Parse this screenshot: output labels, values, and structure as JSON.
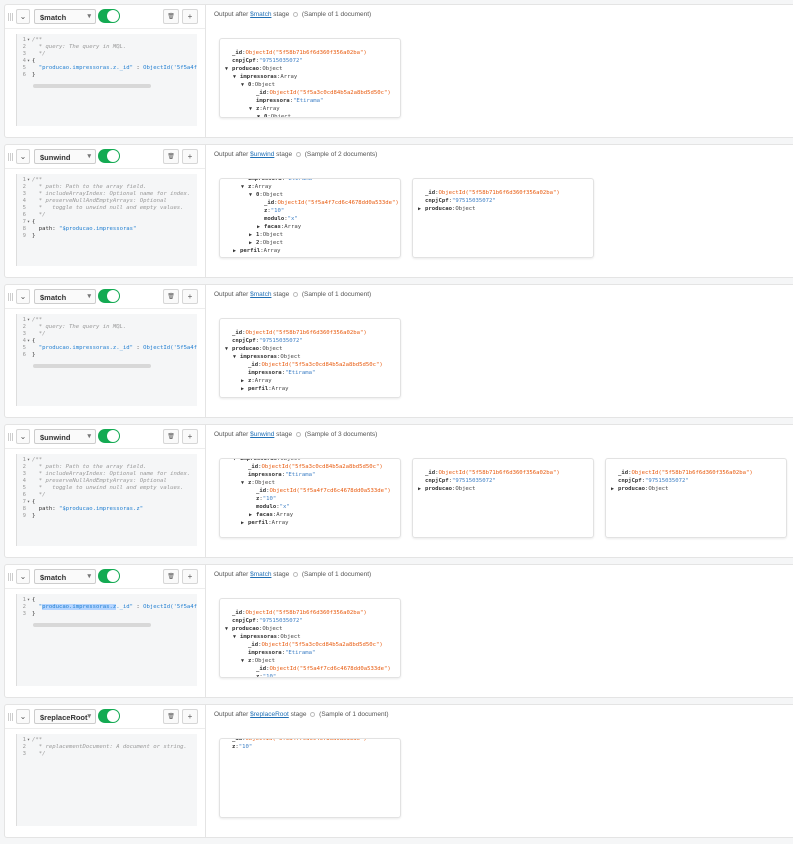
{
  "ui": {
    "output_prefix": "Output after",
    "stage_word": "stage",
    "collapse_icon": "chevron-down-icon",
    "delete_icon": "trash-icon",
    "add_label": "+",
    "select_caret": "▾",
    "delete_glyph": "🗑",
    "chevron_glyph": "⌄"
  },
  "stages": [
    {
      "operator": "$match",
      "enabled": true,
      "sample": "(Sample of 1 document)",
      "code": [
        [
          [
            "/**",
            "c-com"
          ]
        ],
        [
          [
            "  * query: The query in MQL.",
            "c-com"
          ]
        ],
        [
          [
            "  */",
            "c-com"
          ]
        ],
        [
          [
            "{",
            "c-pun"
          ]
        ],
        [
          [
            "  ",
            "c-pun"
          ],
          [
            "\"producao.impressoras.z._id\"",
            "c-str"
          ],
          [
            " : ",
            "c-pun"
          ],
          [
            "ObjectId('5f5a4f",
            "c-fn"
          ]
        ],
        [
          [
            "}",
            "c-pun"
          ]
        ]
      ],
      "folds": [
        1,
        4
      ],
      "scrollbar": true,
      "docs": [
        {
          "scrolled": false,
          "lines": [
            [
              0,
              "",
              "_id",
              "ObjectId(\"5f58b71b6f6d360f356a02ba\")",
              "id"
            ],
            [
              0,
              "",
              "cnpjCpf",
              "\"97515035072\"",
              "s"
            ],
            [
              0,
              "down",
              "producao",
              "Object",
              "t"
            ],
            [
              1,
              "down",
              "impressoras",
              "Array",
              "t"
            ],
            [
              2,
              "down",
              "0",
              "Object",
              "t"
            ],
            [
              3,
              "",
              "_id",
              "ObjectId(\"5f5a3c0cd84b5a2a8bd5d50c\")",
              "id"
            ],
            [
              3,
              "",
              "impressora",
              "\"Etirama\"",
              "s"
            ],
            [
              3,
              "down",
              "z",
              "Array",
              "t"
            ],
            [
              4,
              "down",
              "0",
              "Object",
              "t"
            ]
          ]
        }
      ]
    },
    {
      "operator": "$unwind",
      "enabled": true,
      "sample": "(Sample of 2 documents)",
      "code": [
        [
          [
            "/**",
            "c-com"
          ]
        ],
        [
          [
            "  * path: Path to the array field.",
            "c-com"
          ]
        ],
        [
          [
            "  * includeArrayIndex: Optional name for index.",
            "c-com"
          ]
        ],
        [
          [
            "  * preserveNullAndEmptyArrays: Optional",
            "c-com"
          ]
        ],
        [
          [
            "  *   toggle to unwind null and empty values.",
            "c-com"
          ]
        ],
        [
          [
            "  */",
            "c-com"
          ]
        ],
        [
          [
            "{",
            "c-pun"
          ]
        ],
        [
          [
            "  path: ",
            "c-pun"
          ],
          [
            "\"$producao.impressoras\"",
            "c-str"
          ]
        ],
        [
          [
            "}",
            "c-pun"
          ]
        ]
      ],
      "folds": [
        1,
        7
      ],
      "scrollbar": false,
      "docs": [
        {
          "scrolled": true,
          "lines": [
            [
              2,
              "",
              "impressora",
              "\"Etirama\"",
              "s"
            ],
            [
              2,
              "down",
              "z",
              "Array",
              "t"
            ],
            [
              3,
              "down",
              "0",
              "Object",
              "t"
            ],
            [
              4,
              "",
              "_id",
              "ObjectId(\"5f5a4f7cd6c4678dd0a533de\")",
              "id"
            ],
            [
              4,
              "",
              "z",
              "\"10\"",
              "s"
            ],
            [
              4,
              "",
              "modulo",
              "\"x\"",
              "s"
            ],
            [
              4,
              "right",
              "facas",
              "Array",
              "t"
            ],
            [
              3,
              "right",
              "1",
              "Object",
              "t"
            ],
            [
              3,
              "right",
              "2",
              "Object",
              "t"
            ],
            [
              1,
              "right",
              "perfil",
              "Array",
              "t"
            ]
          ]
        },
        {
          "scrolled": false,
          "lines": [
            [
              0,
              "",
              "_id",
              "ObjectId(\"5f58b71b6f6d360f356a02ba\")",
              "id"
            ],
            [
              0,
              "",
              "cnpjCpf",
              "\"97515035072\"",
              "s"
            ],
            [
              0,
              "right",
              "producao",
              "Object",
              "t"
            ]
          ]
        }
      ]
    },
    {
      "operator": "$match",
      "enabled": true,
      "sample": "(Sample of 1 document)",
      "code": [
        [
          [
            "/**",
            "c-com"
          ]
        ],
        [
          [
            "  * query: The query in MQL.",
            "c-com"
          ]
        ],
        [
          [
            "  */",
            "c-com"
          ]
        ],
        [
          [
            "{",
            "c-pun"
          ]
        ],
        [
          [
            "  ",
            "c-pun"
          ],
          [
            "\"producao.impressoras.z._id\"",
            "c-str"
          ],
          [
            " : ",
            "c-pun"
          ],
          [
            "ObjectId('5f5a4f",
            "c-fn"
          ]
        ],
        [
          [
            "}",
            "c-pun"
          ]
        ]
      ],
      "folds": [
        1,
        4
      ],
      "scrollbar": true,
      "docs": [
        {
          "scrolled": false,
          "lines": [
            [
              0,
              "",
              "_id",
              "ObjectId(\"5f58b71b6f6d360f356a02ba\")",
              "id"
            ],
            [
              0,
              "",
              "cnpjCpf",
              "\"97515035072\"",
              "s"
            ],
            [
              0,
              "down",
              "producao",
              "Object",
              "t"
            ],
            [
              1,
              "down",
              "impressoras",
              "Object",
              "t"
            ],
            [
              2,
              "",
              "_id",
              "ObjectId(\"5f5a3c0cd84b5a2a8bd5d50c\")",
              "id"
            ],
            [
              2,
              "",
              "impressora",
              "\"Etirama\"",
              "s"
            ],
            [
              2,
              "right",
              "z",
              "Array",
              "t"
            ],
            [
              2,
              "right",
              "perfil",
              "Array",
              "t"
            ]
          ]
        }
      ]
    },
    {
      "operator": "$unwind",
      "enabled": true,
      "sample": "(Sample of 3 documents)",
      "code": [
        [
          [
            "/**",
            "c-com"
          ]
        ],
        [
          [
            "  * path: Path to the array field.",
            "c-com"
          ]
        ],
        [
          [
            "  * includeArrayIndex: Optional name for index.",
            "c-com"
          ]
        ],
        [
          [
            "  * preserveNullAndEmptyArrays: Optional",
            "c-com"
          ]
        ],
        [
          [
            "  *   toggle to unwind null and empty values.",
            "c-com"
          ]
        ],
        [
          [
            "  */",
            "c-com"
          ]
        ],
        [
          [
            "{",
            "c-pun"
          ]
        ],
        [
          [
            "  path: ",
            "c-pun"
          ],
          [
            "\"$producao.impressoras.z\"",
            "c-str"
          ]
        ],
        [
          [
            "}",
            "c-pun"
          ]
        ]
      ],
      "folds": [
        1,
        7
      ],
      "scrollbar": false,
      "docs": [
        {
          "scrolled": true,
          "lines": [
            [
              1,
              "down",
              "impressoras",
              "Object",
              "t"
            ],
            [
              2,
              "",
              "_id",
              "ObjectId(\"5f5a3c0cd84b5a2a8bd5d50c\")",
              "id"
            ],
            [
              2,
              "",
              "impressora",
              "\"Etirama\"",
              "s"
            ],
            [
              2,
              "down",
              "z",
              "Object",
              "t"
            ],
            [
              3,
              "",
              "_id",
              "ObjectId(\"5f5a4f7cd6c4678dd0a533de\")",
              "id"
            ],
            [
              3,
              "",
              "z",
              "\"10\"",
              "s"
            ],
            [
              3,
              "",
              "modulo",
              "\"x\"",
              "s"
            ],
            [
              3,
              "right",
              "facas",
              "Array",
              "t"
            ],
            [
              2,
              "right",
              "perfil",
              "Array",
              "t"
            ]
          ]
        },
        {
          "scrolled": false,
          "lines": [
            [
              0,
              "",
              "_id",
              "ObjectId(\"5f58b71b6f6d360f356a02ba\")",
              "id"
            ],
            [
              0,
              "",
              "cnpjCpf",
              "\"97515035072\"",
              "s"
            ],
            [
              0,
              "right",
              "producao",
              "Object",
              "t"
            ]
          ]
        },
        {
          "scrolled": false,
          "lines": [
            [
              0,
              "",
              "_id",
              "ObjectId(\"5f58b71b6f6d360f356a02ba\")",
              "id"
            ],
            [
              0,
              "",
              "cnpjCpf",
              "\"97515035072\"",
              "s"
            ],
            [
              0,
              "right",
              "producao",
              "Object",
              "t"
            ]
          ]
        }
      ]
    },
    {
      "operator": "$match",
      "enabled": true,
      "sample": "(Sample of 1 document)",
      "code": [
        [
          [
            "{",
            "c-pun"
          ]
        ],
        [
          [
            "  \"",
            "c-str"
          ],
          [
            "producao.impressoras.z",
            "c-sel"
          ],
          [
            "._id\"",
            "c-str"
          ],
          [
            " : ",
            "c-pun"
          ],
          [
            "ObjectId('5f5a4f",
            "c-fn"
          ]
        ],
        [
          [
            "}",
            "c-pun"
          ]
        ]
      ],
      "folds": [
        1
      ],
      "scrollbar": true,
      "docs": [
        {
          "scrolled": false,
          "lines": [
            [
              0,
              "",
              "_id",
              "ObjectId(\"5f58b71b6f6d360f356a02ba\")",
              "id"
            ],
            [
              0,
              "",
              "cnpjCpf",
              "\"97515035072\"",
              "s"
            ],
            [
              0,
              "down",
              "producao",
              "Object",
              "t"
            ],
            [
              1,
              "down",
              "impressoras",
              "Object",
              "t"
            ],
            [
              2,
              "",
              "_id",
              "ObjectId(\"5f5a3c0cd84b5a2a8bd5d50c\")",
              "id"
            ],
            [
              2,
              "",
              "impressora",
              "\"Etirama\"",
              "s"
            ],
            [
              2,
              "down",
              "z",
              "Object",
              "t"
            ],
            [
              3,
              "",
              "_id",
              "ObjectId(\"5f5a4f7cd6c4678dd0a533de\")",
              "id"
            ],
            [
              3,
              "",
              "z",
              "\"10\"",
              "s"
            ]
          ]
        }
      ]
    },
    {
      "operator": "$replaceRoot",
      "enabled": true,
      "sample": "(Sample of 1 document)",
      "code": [
        [
          [
            "/**",
            "c-com"
          ]
        ],
        [
          [
            "  * replacementDocument: A document or string.",
            "c-com"
          ]
        ],
        [
          [
            "  */",
            "c-com"
          ]
        ]
      ],
      "folds": [
        1
      ],
      "scrollbar": false,
      "docs": [
        {
          "scrolled": true,
          "lines": [
            [
              0,
              "",
              "_id",
              "ObjectId(\"5f5a4f7cd6c4678dd0a533de\")",
              "id"
            ],
            [
              0,
              "",
              "z",
              "\"10\"",
              "s"
            ]
          ]
        }
      ]
    }
  ]
}
